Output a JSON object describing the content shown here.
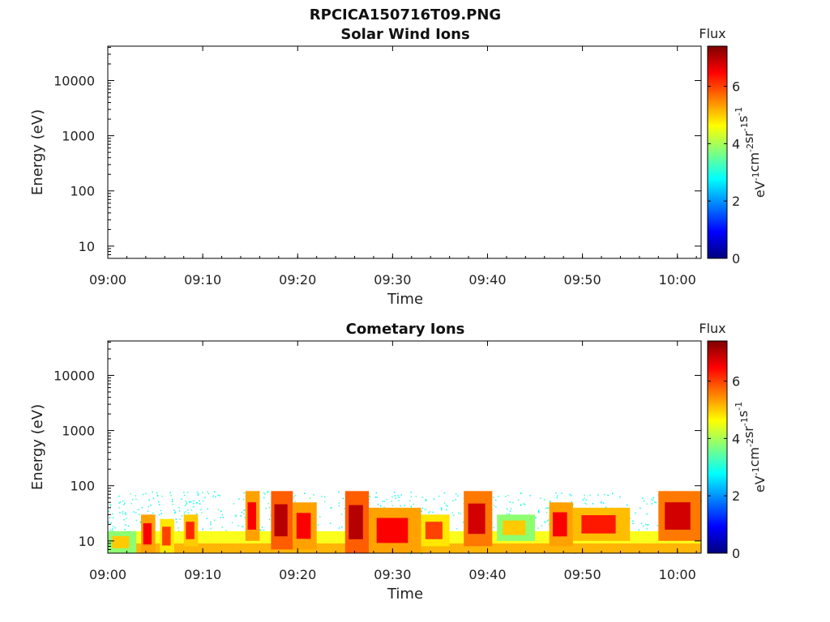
{
  "figure": {
    "title": "RPCICA150716T09.PNG"
  },
  "colorbar": {
    "title": "Flux",
    "unit_parts": [
      "eV",
      "-1",
      "cm",
      "-2",
      "sr",
      "-1",
      "s",
      "-1"
    ],
    "ticks": [
      0,
      2,
      4,
      6
    ],
    "range": [
      0,
      7.4
    ],
    "colormap": [
      "#00007f",
      "#0000ff",
      "#007fff",
      "#00ffff",
      "#7fff7f",
      "#ffff00",
      "#ff7f00",
      "#ff0000",
      "#7f0000"
    ]
  },
  "chart_data": [
    {
      "type": "heatmap",
      "title": "Solar Wind Ions",
      "xlabel": "Time",
      "ylabel": "Energy (eV)",
      "x_tick_labels": [
        "09:00",
        "09:10",
        "09:20",
        "09:30",
        "09:40",
        "09:50",
        "10:00"
      ],
      "x_ticks_min": [
        0,
        10,
        20,
        30,
        40,
        50,
        60
      ],
      "xlim_min": [
        0,
        62.5
      ],
      "y_scale": "log",
      "y_tick_labels": [
        "10",
        "100",
        "1000",
        "10000"
      ],
      "y_ticks": [
        10,
        100,
        1000,
        10000
      ],
      "ylim": [
        6,
        42000
      ],
      "cells": []
    },
    {
      "type": "heatmap",
      "title": "Cometary Ions",
      "xlabel": "Time",
      "ylabel": "Energy (eV)",
      "x_tick_labels": [
        "09:00",
        "09:10",
        "09:20",
        "09:30",
        "09:40",
        "09:50",
        "10:00"
      ],
      "x_ticks_min": [
        0,
        10,
        20,
        30,
        40,
        50,
        60
      ],
      "xlim_min": [
        0,
        62.5
      ],
      "y_scale": "log",
      "y_tick_labels": [
        "10",
        "100",
        "1000",
        "10000"
      ],
      "y_ticks": [
        10,
        100,
        1000,
        10000
      ],
      "ylim": [
        6,
        42000
      ],
      "flux_bands": [
        {
          "t0": 0,
          "t1": 3,
          "e_low": 6,
          "e_high": 15,
          "flux": 5.0
        },
        {
          "t0": 3.5,
          "t1": 5,
          "e_low": 6,
          "e_high": 30,
          "flux": 6.5
        },
        {
          "t0": 5.5,
          "t1": 7,
          "e_low": 6,
          "e_high": 25,
          "flux": 6.0
        },
        {
          "t0": 8,
          "t1": 9.5,
          "e_low": 8,
          "e_high": 30,
          "flux": 6.2
        },
        {
          "t0": 14.5,
          "t1": 16,
          "e_low": 10,
          "e_high": 80,
          "flux": 6.5
        },
        {
          "t0": 17.2,
          "t1": 19.5,
          "e_low": 7,
          "e_high": 80,
          "flux": 7.0
        },
        {
          "t0": 19.5,
          "t1": 22,
          "e_low": 7,
          "e_high": 50,
          "flux": 6.5
        },
        {
          "t0": 25,
          "t1": 27.5,
          "e_low": 6,
          "e_high": 80,
          "flux": 7.0
        },
        {
          "t0": 27.5,
          "t1": 33,
          "e_low": 6,
          "e_high": 40,
          "flux": 6.5
        },
        {
          "t0": 33,
          "t1": 36,
          "e_low": 8,
          "e_high": 30,
          "flux": 6.0
        },
        {
          "t0": 37.5,
          "t1": 40.5,
          "e_low": 8,
          "e_high": 80,
          "flux": 6.8
        },
        {
          "t0": 41,
          "t1": 45,
          "e_low": 10,
          "e_high": 30,
          "flux": 5.0
        },
        {
          "t0": 46.5,
          "t1": 49,
          "e_low": 8,
          "e_high": 50,
          "flux": 6.5
        },
        {
          "t0": 49,
          "t1": 55,
          "e_low": 10,
          "e_high": 40,
          "flux": 6.3
        },
        {
          "t0": 58,
          "t1": 62.5,
          "e_low": 10,
          "e_high": 80,
          "flux": 6.8
        }
      ],
      "background": {
        "e_low": 6,
        "e_high": 80,
        "flux": 3.0
      }
    }
  ]
}
